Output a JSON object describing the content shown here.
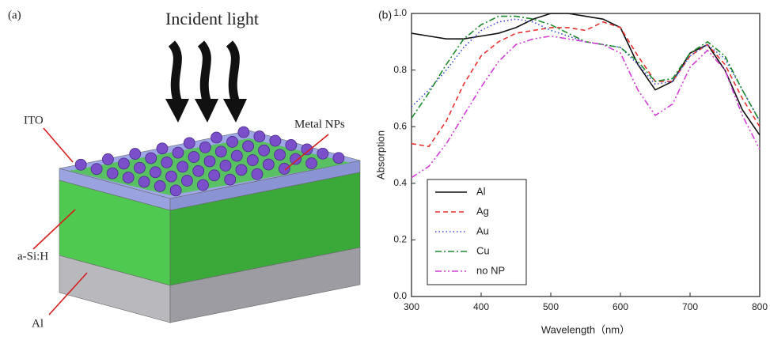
{
  "diagram": {
    "panel_label": "(a)",
    "incident_light": "Incident light",
    "ito": "ITO",
    "metal_nps": "Metal NPs",
    "asi": "a-Si:H",
    "al": "Al"
  },
  "chart_data": {
    "type": "line",
    "panel_label": "(b)",
    "xlabel": "Wavelength（nm）",
    "ylabel": "Absorption",
    "x": [
      300,
      325,
      350,
      375,
      400,
      425,
      450,
      475,
      500,
      525,
      550,
      575,
      600,
      625,
      650,
      675,
      700,
      725,
      750,
      775,
      800
    ],
    "xlim": [
      300,
      800
    ],
    "ylim": [
      0,
      1.0
    ],
    "xticks": [
      300,
      400,
      500,
      600,
      700,
      800
    ],
    "yticks": [
      {
        "value": 0,
        "label": "0.0"
      },
      0.2,
      0.4,
      0.6,
      0.8,
      {
        "value": 1,
        "label": "1.0"
      }
    ],
    "legend": "lower left",
    "series": [
      {
        "name": "Al",
        "color": "#111111",
        "style": "solid",
        "values": [
          0.93,
          0.92,
          0.91,
          0.91,
          0.92,
          0.93,
          0.95,
          0.98,
          1.0,
          1.0,
          0.99,
          0.98,
          0.95,
          0.82,
          0.73,
          0.76,
          0.86,
          0.89,
          0.8,
          0.66,
          0.57
        ]
      },
      {
        "name": "Ag",
        "color": "#e8322f",
        "style": "dashed",
        "values": [
          0.54,
          0.53,
          0.62,
          0.75,
          0.85,
          0.9,
          0.93,
          0.94,
          0.95,
          0.95,
          0.94,
          0.97,
          0.95,
          0.85,
          0.76,
          0.76,
          0.85,
          0.89,
          0.82,
          0.7,
          0.6
        ]
      },
      {
        "name": "Au",
        "color": "#3b4bd6",
        "style": "dotted",
        "values": [
          0.67,
          0.73,
          0.8,
          0.88,
          0.94,
          0.97,
          0.98,
          0.97,
          0.94,
          0.92,
          0.9,
          0.89,
          0.88,
          0.82,
          0.75,
          0.76,
          0.85,
          0.89,
          0.84,
          0.73,
          0.62
        ]
      },
      {
        "name": "Cu",
        "color": "#1e8a2e",
        "style": "dashdot",
        "values": [
          0.63,
          0.72,
          0.82,
          0.91,
          0.96,
          0.99,
          0.99,
          0.98,
          0.96,
          0.93,
          0.9,
          0.89,
          0.88,
          0.83,
          0.76,
          0.77,
          0.86,
          0.9,
          0.85,
          0.73,
          0.62
        ]
      },
      {
        "name": "no NP",
        "color": "#d23fd6",
        "style": "dashdotdot",
        "values": [
          0.42,
          0.46,
          0.54,
          0.64,
          0.74,
          0.83,
          0.89,
          0.91,
          0.92,
          0.91,
          0.9,
          0.89,
          0.86,
          0.73,
          0.64,
          0.68,
          0.81,
          0.87,
          0.8,
          0.64,
          0.52
        ]
      }
    ]
  }
}
